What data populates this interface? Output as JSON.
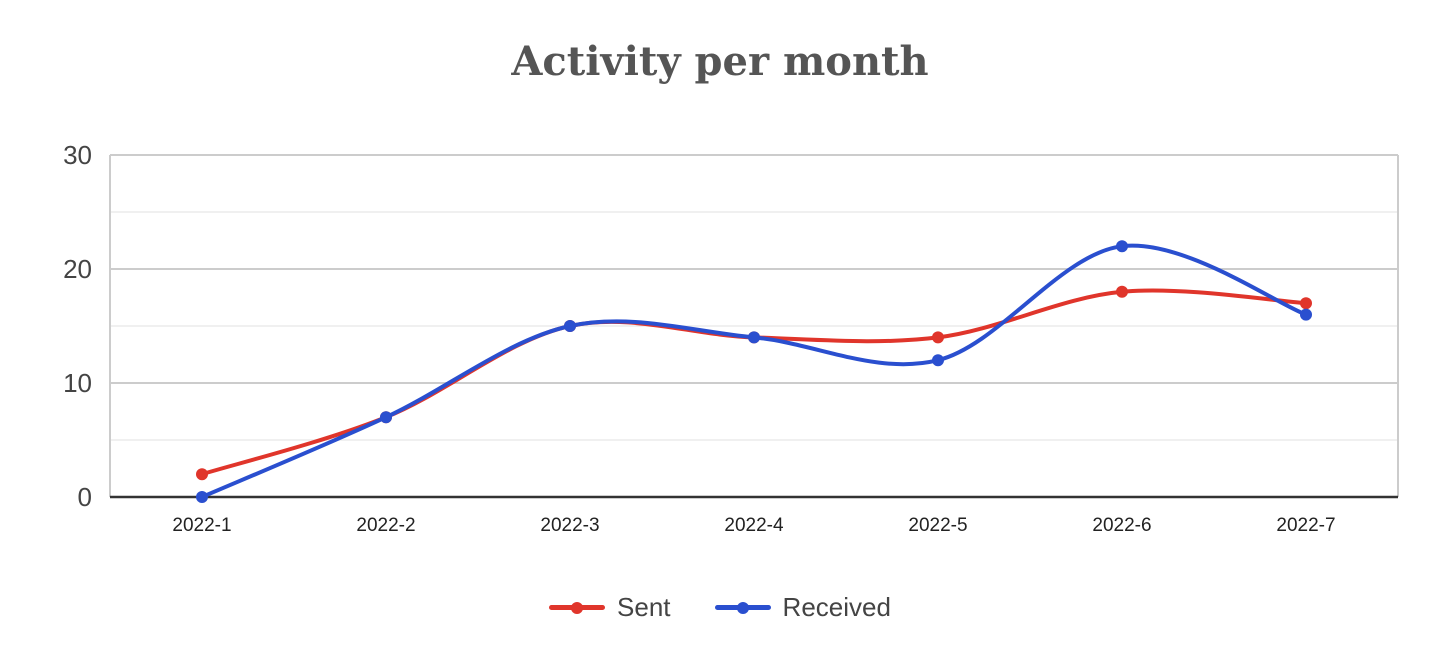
{
  "chart_data": {
    "type": "line",
    "title": "Activity per month",
    "xlabel": "",
    "ylabel": "",
    "categories": [
      "2022-1",
      "2022-2",
      "2022-3",
      "2022-4",
      "2022-5",
      "2022-6",
      "2022-7"
    ],
    "ylim": [
      0,
      30
    ],
    "yticks": [
      0,
      10,
      20,
      30
    ],
    "grid": true,
    "smooth": true,
    "legend_position": "bottom",
    "series": [
      {
        "name": "Sent",
        "color": "#e0352b",
        "values": [
          2,
          7,
          15,
          14,
          14,
          18,
          17
        ]
      },
      {
        "name": "Received",
        "color": "#2a4fcf",
        "values": [
          0,
          7,
          15,
          14,
          12,
          22,
          16
        ]
      }
    ]
  }
}
